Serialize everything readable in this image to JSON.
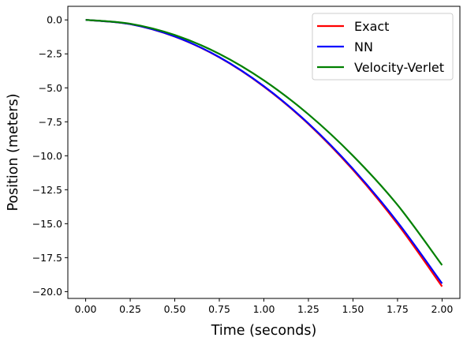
{
  "chart_data": {
    "type": "line",
    "title": "",
    "xlabel": "Time (seconds)",
    "ylabel": "Position (meters)",
    "xlim": [
      -0.1,
      2.1
    ],
    "ylim": [
      -20.5,
      1.0
    ],
    "xticks": [
      0.0,
      0.25,
      0.5,
      0.75,
      1.0,
      1.25,
      1.5,
      1.75,
      2.0
    ],
    "xtick_labels": [
      "0.00",
      "0.25",
      "0.50",
      "0.75",
      "1.00",
      "1.25",
      "1.50",
      "1.75",
      "2.00"
    ],
    "yticks": [
      0.0,
      -2.5,
      -5.0,
      -7.5,
      -10.0,
      -12.5,
      -15.0,
      -17.5,
      -20.0
    ],
    "ytick_labels": [
      "0.0",
      "−2.5",
      "−5.0",
      "−7.5",
      "−10.0",
      "−12.5",
      "−15.0",
      "−17.5",
      "−20.0"
    ],
    "grid": false,
    "legend_position": "top-right",
    "series": [
      {
        "name": "Exact",
        "color": "#ff0000",
        "x": [
          0.0,
          0.25,
          0.5,
          0.75,
          1.0,
          1.25,
          1.5,
          1.75,
          2.0
        ],
        "y": [
          0.0,
          -0.31,
          -1.23,
          -2.76,
          -4.91,
          -7.66,
          -11.04,
          -15.02,
          -19.62
        ]
      },
      {
        "name": "NN",
        "color": "#0000ff",
        "x": [
          0.0,
          0.25,
          0.5,
          0.75,
          1.0,
          1.25,
          1.5,
          1.75,
          2.0
        ],
        "y": [
          0.0,
          -0.31,
          -1.22,
          -2.74,
          -4.88,
          -7.62,
          -10.96,
          -14.88,
          -19.4
        ]
      },
      {
        "name": "Velocity-Verlet",
        "color": "#008000",
        "x": [
          0.0,
          0.25,
          0.5,
          0.75,
          1.0,
          1.25,
          1.5,
          1.75,
          2.0
        ],
        "y": [
          0.0,
          -0.28,
          -1.11,
          -2.5,
          -4.45,
          -6.95,
          -10.0,
          -13.62,
          -18.05
        ]
      }
    ]
  }
}
